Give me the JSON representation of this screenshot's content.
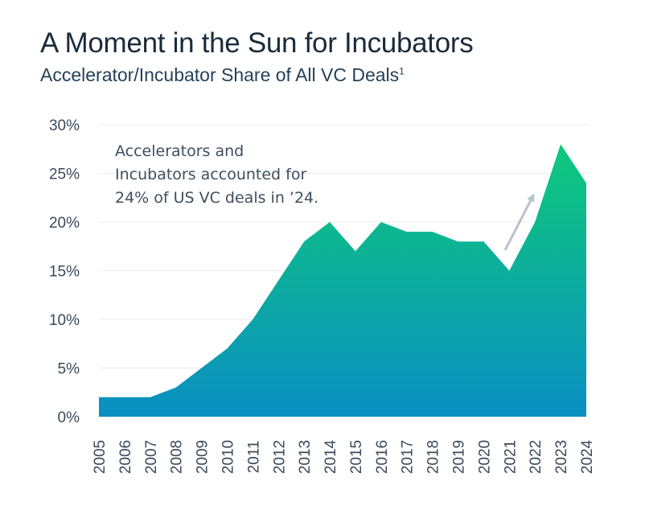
{
  "chart_data": {
    "type": "area",
    "title": "A Moment in the Sun for Incubators",
    "subtitle": "Accelerator/Incubator Share of All VC Deals",
    "subtitle_footnote": "1",
    "x": [
      "2005",
      "2006",
      "2007",
      "2008",
      "2009",
      "2010",
      "2011",
      "2012",
      "2013",
      "2014",
      "2015",
      "2016",
      "2017",
      "2018",
      "2019",
      "2020",
      "2021",
      "2022",
      "2023",
      "2024"
    ],
    "values": [
      2,
      2,
      2,
      3,
      5,
      7,
      10,
      14,
      18,
      20,
      17,
      20,
      19,
      19,
      18,
      18,
      15,
      20,
      28,
      24
    ],
    "unit": "%",
    "ylim": [
      0,
      30
    ],
    "yticks": [
      "0%",
      "5%",
      "10%",
      "15%",
      "20%",
      "25%",
      "30%"
    ],
    "grid": true,
    "colors": {
      "bottom": "#0a8fc2",
      "top": "#0fc97a",
      "arrow": "#b7c2cf"
    },
    "annotation": {
      "lines": [
        "Accelerators and",
        "Incubators accounted for",
        "24% of US VC deals in ’24."
      ]
    }
  }
}
